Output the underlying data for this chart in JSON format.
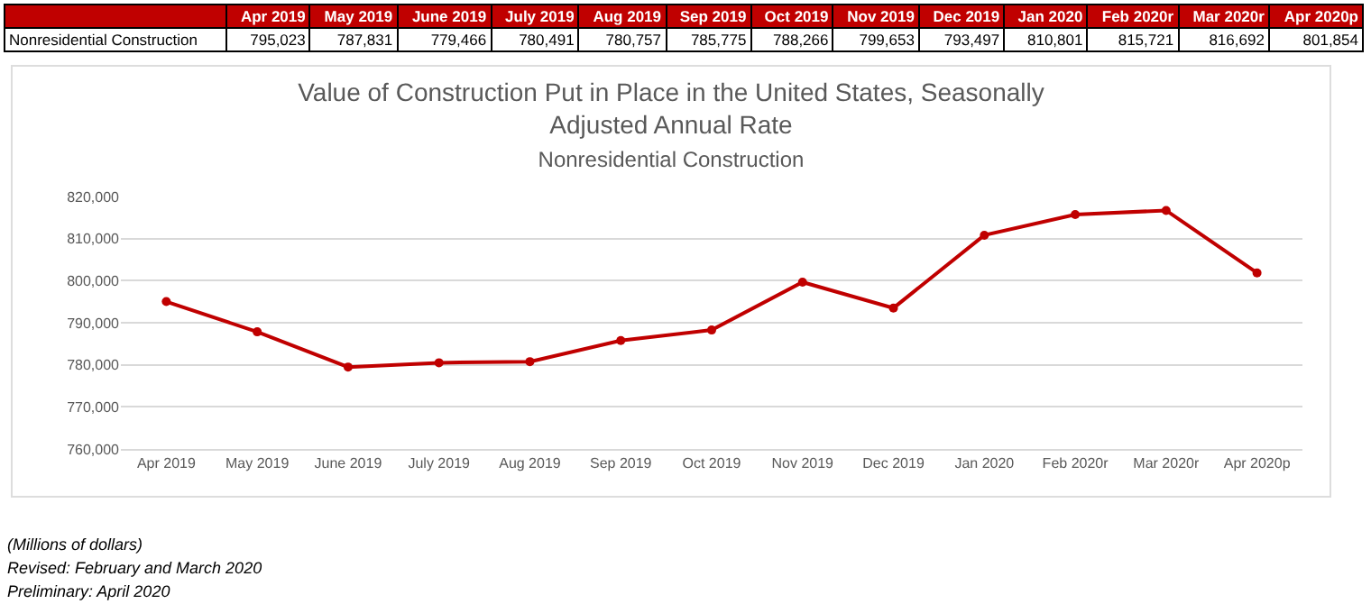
{
  "chart_data": {
    "type": "line",
    "title": "Value of Construction Put in Place in the United States, Seasonally Adjusted Annual Rate",
    "subtitle": "Nonresidential Construction",
    "categories": [
      "Apr 2019",
      "May 2019",
      "June 2019",
      "July 2019",
      "Aug 2019",
      "Sep 2019",
      "Oct 2019",
      "Nov 2019",
      "Dec 2019",
      "Jan 2020",
      "Feb 2020r",
      "Mar 2020r",
      "Apr 2020p"
    ],
    "series": [
      {
        "name": "Nonresidential Construction",
        "color": "#c00000",
        "values": [
          795023,
          787831,
          779466,
          780491,
          780757,
          785775,
          788266,
          799653,
          793497,
          810801,
          815721,
          816692,
          801854
        ]
      }
    ],
    "ylim": [
      760000,
      820000
    ],
    "yticks": [
      {
        "value": 760000,
        "label": "760,000"
      },
      {
        "value": 770000,
        "label": "770,000"
      },
      {
        "value": 780000,
        "label": "780,000"
      },
      {
        "value": 790000,
        "label": "790,000"
      },
      {
        "value": 800000,
        "label": "800,000"
      },
      {
        "value": 810000,
        "label": "810,000"
      },
      {
        "value": 820000,
        "label": "820,000"
      }
    ],
    "value_labels": [
      "795,023",
      "787,831",
      "779,466",
      "780,491",
      "780,757",
      "785,775",
      "788,266",
      "799,653",
      "793,497",
      "810,801",
      "815,721",
      "816,692",
      "801,854"
    ],
    "grid": "y",
    "marker": "circle",
    "line_style": "solid",
    "annotations": [
      "(Millions of dollars)",
      "Revised: February and March 2020",
      "Preliminary: April 2020"
    ]
  }
}
